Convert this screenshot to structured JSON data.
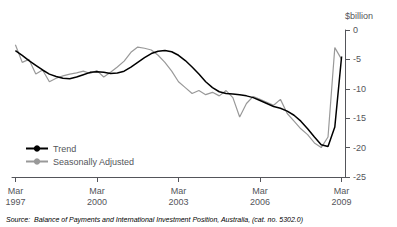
{
  "chart_data": {
    "type": "line",
    "ylabel": "$billion",
    "annotations": [
      "Source:  Balance of Payments and International Investment Position, Australia, (cat. no. 5302.0)"
    ],
    "categories": [
      "Mar\n1997",
      null,
      null,
      null,
      null,
      null,
      null,
      null,
      null,
      null,
      null,
      null,
      "Mar\n2000",
      null,
      null,
      null,
      null,
      null,
      null,
      null,
      null,
      null,
      null,
      null,
      "Mar\n2003",
      null,
      null,
      null,
      null,
      null,
      null,
      null,
      null,
      null,
      null,
      null,
      "Mar\n2006",
      null,
      null,
      null,
      null,
      null,
      null,
      null,
      null,
      null,
      null,
      null,
      "Mar\n2009"
    ],
    "series": [
      {
        "name": "Trend",
        "color": "#000000",
        "values": [
          -3.5,
          -4.3,
          -5.2,
          -6.0,
          -6.8,
          -7.5,
          -7.9,
          -8.2,
          -8.3,
          -8.0,
          -7.6,
          -7.2,
          -7.1,
          -7.2,
          -7.4,
          -7.3,
          -7.0,
          -6.3,
          -5.5,
          -4.7,
          -4.0,
          -3.6,
          -3.5,
          -3.7,
          -4.3,
          -5.2,
          -6.3,
          -7.5,
          -8.8,
          -9.8,
          -10.5,
          -10.8,
          -10.9,
          -11.0,
          -11.2,
          -11.5,
          -12.0,
          -12.5,
          -13.0,
          -13.3,
          -13.8,
          -14.5,
          -15.5,
          -16.8,
          -18.2,
          -19.5,
          -19.8,
          -16.5,
          -4.5
        ]
      },
      {
        "name": "Seasonally Adjusted",
        "color": "#999999",
        "values": [
          -2.5,
          -5.5,
          -5.0,
          -7.5,
          -6.8,
          -8.8,
          -8.2,
          -7.8,
          -7.5,
          -7.3,
          -7.0,
          -7.4,
          -6.9,
          -8.0,
          -7.2,
          -6.3,
          -5.3,
          -3.8,
          -2.9,
          -3.1,
          -3.4,
          -4.3,
          -5.5,
          -7.0,
          -8.8,
          -9.8,
          -10.8,
          -10.3,
          -11.0,
          -10.6,
          -11.2,
          -10.3,
          -11.5,
          -14.8,
          -12.5,
          -11.3,
          -11.8,
          -12.3,
          -12.8,
          -11.8,
          -14.2,
          -15.5,
          -16.8,
          -17.8,
          -19.2,
          -20.0,
          -18.2,
          -3.0,
          -5.0
        ]
      }
    ],
    "ylim": [
      -25,
      0
    ],
    "yticks": [
      0,
      -5,
      -10,
      -15,
      -20,
      -25
    ],
    "legend": "lower left",
    "grid": false
  }
}
